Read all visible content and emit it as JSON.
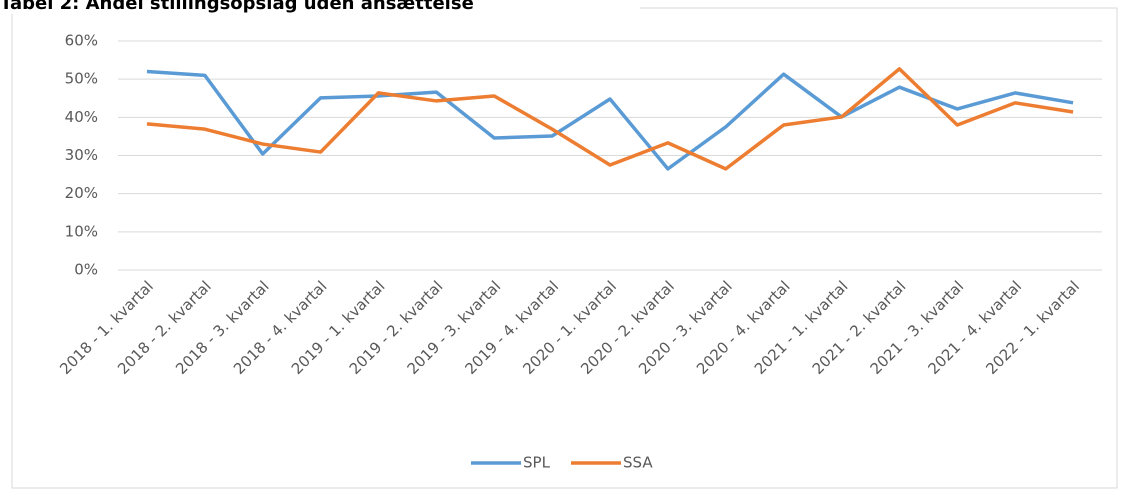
{
  "chart_data": {
    "type": "line",
    "title": "Tabel 2: Andel stillingsopslag uden ansættelse",
    "categories": [
      "2018 - 1. kvartal",
      "2018 - 2. kvartal",
      "2018 - 3. kvartal",
      "2018 - 4. kvartal",
      "2019 - 1. kvartal",
      "2019 - 2. kvartal",
      "2019 - 3. kvartal",
      "2019 - 4. kvartal",
      "2020 - 1. kvartal",
      "2020 - 2. kvartal",
      "2020 - 3. kvartal",
      "2020 - 4. kvartal",
      "2021 - 1. kvartal",
      "2021 - 2. kvartal",
      "2021 - 3. kvartal",
      "2021 - 4. kvartal",
      "2022 - 1. kvartal"
    ],
    "series": [
      {
        "name": "SPL",
        "color": "#5b9bd5",
        "values": [
          52,
          51,
          30.4,
          45.1,
          45.6,
          46.6,
          34.6,
          35.1,
          44.8,
          26.5,
          37.5,
          51.3,
          40.1,
          47.9,
          42.2,
          46.4,
          43.8
        ]
      },
      {
        "name": "SSA",
        "color": "#ed7d31",
        "values": [
          38.3,
          36.9,
          33,
          30.9,
          46.4,
          44.3,
          45.6,
          36.9,
          27.5,
          33.3,
          26.5,
          38,
          40.1,
          52.7,
          38,
          43.8,
          41.4
        ]
      }
    ],
    "ylim": [
      0,
      60
    ],
    "yticks": [
      {
        "value": 0,
        "label": "0%"
      },
      {
        "value": 10,
        "label": "10%"
      },
      {
        "value": 20,
        "label": "20%"
      },
      {
        "value": 30,
        "label": "30%"
      },
      {
        "value": 40,
        "label": "40%"
      },
      {
        "value": 50,
        "label": "50%"
      },
      {
        "value": 60,
        "label": "60%"
      }
    ],
    "grid": true,
    "legend": "bottom"
  }
}
